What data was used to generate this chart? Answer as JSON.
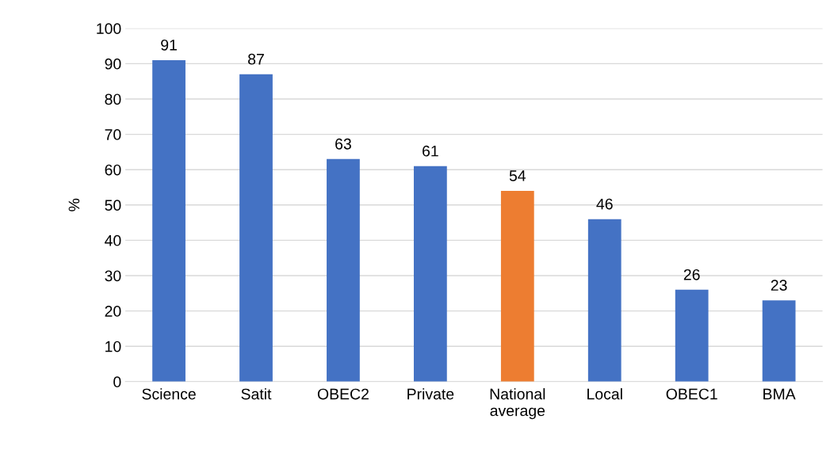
{
  "chart_data": {
    "type": "bar",
    "ylabel": "%",
    "categories": [
      "Science",
      "Satit",
      "OBEC2",
      "Private",
      "National average",
      "Local",
      "OBEC1",
      "BMA"
    ],
    "values": [
      91,
      87,
      63,
      61,
      54,
      46,
      26,
      23
    ],
    "colors": [
      "#4472c4",
      "#4472c4",
      "#4472c4",
      "#4472c4",
      "#ed7d31",
      "#4472c4",
      "#4472c4",
      "#4472c4"
    ],
    "ylim": [
      0,
      100
    ],
    "yticks": [
      0,
      10,
      20,
      30,
      40,
      50,
      60,
      70,
      80,
      90,
      100
    ],
    "grid": "y",
    "data_labels": true,
    "legend": false
  }
}
